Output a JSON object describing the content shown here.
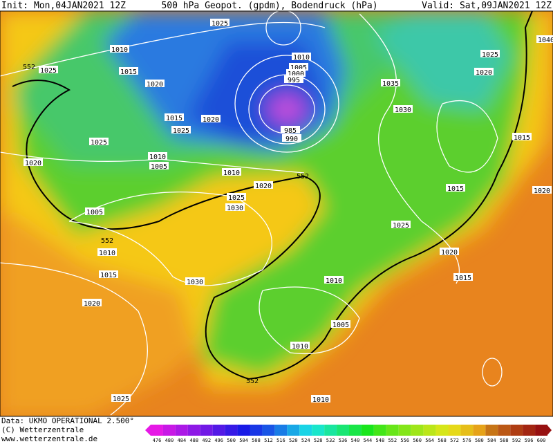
{
  "header": {
    "init": "Init: Mon,04JAN2021 12Z",
    "title": "500 hPa Geopot. (gpdm), Bodendruck (hPa)",
    "valid": "Valid: Sat,09JAN2021 12Z"
  },
  "footer": [
    "Data: UKMO OPERATIONAL 2.500°",
    "(C) Wetterzentrale",
    "www.wetterzentrale.de"
  ],
  "isobar_labels": [
    "1025",
    "1010",
    "1025",
    "1015",
    "1020",
    "1010",
    "1005",
    "1000",
    "995",
    "1035",
    "1030",
    "1025",
    "1020",
    "1040",
    "1015",
    "1020",
    "1025",
    "1025",
    "1020",
    "1010",
    "1005",
    "1010",
    "1020",
    "1025",
    "1030",
    "985",
    "990",
    "1005",
    "1015",
    "1015",
    "1020",
    "1025",
    "1010",
    "1015",
    "1020",
    "1030",
    "1020",
    "1015",
    "1010",
    "1005",
    "1010",
    "1025",
    "1010"
  ],
  "contour_552_labels": [
    "552",
    "552",
    "552",
    "552"
  ],
  "colorbar": [
    "476",
    "480",
    "484",
    "488",
    "492",
    "496",
    "500",
    "504",
    "508",
    "512",
    "516",
    "520",
    "524",
    "528",
    "532",
    "536",
    "540",
    "544",
    "548",
    "552",
    "556",
    "560",
    "564",
    "568",
    "572",
    "576",
    "580",
    "584",
    "588",
    "592",
    "596",
    "600"
  ]
}
